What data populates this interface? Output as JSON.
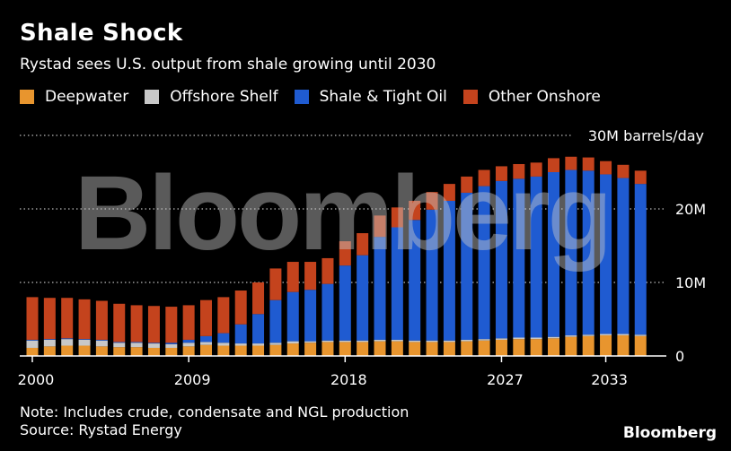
{
  "chart_data": {
    "type": "bar",
    "stacked": true,
    "title": "Shale Shock",
    "subtitle": "Rystad sees U.S. output from shale growing until 2030",
    "unit_label": "30M barrels/day",
    "y_tick_labels": [
      "0",
      "10M",
      "20M"
    ],
    "x_tick_labels": [
      "2000",
      "2009",
      "2018",
      "2027",
      "2033"
    ],
    "ylim": [
      0,
      30
    ],
    "grid": true,
    "legend_position": "top",
    "categories": [
      2000,
      2001,
      2002,
      2003,
      2004,
      2005,
      2006,
      2007,
      2008,
      2009,
      2010,
      2011,
      2012,
      2013,
      2014,
      2015,
      2016,
      2017,
      2018,
      2019,
      2020,
      2021,
      2022,
      2023,
      2024,
      2025,
      2026,
      2027,
      2028,
      2029,
      2030,
      2031,
      2032,
      2033,
      2034,
      2035
    ],
    "series": [
      {
        "name": "Deepwater",
        "color": "#e8952e",
        "values": [
          1.1,
          1.3,
          1.4,
          1.4,
          1.3,
          1.2,
          1.2,
          1.1,
          1.1,
          1.3,
          1.5,
          1.4,
          1.4,
          1.4,
          1.5,
          1.7,
          1.8,
          1.9,
          1.9,
          1.9,
          2.0,
          2.0,
          1.9,
          1.9,
          1.9,
          2.0,
          2.1,
          2.2,
          2.3,
          2.3,
          2.4,
          2.6,
          2.7,
          2.8,
          2.8,
          2.7
        ]
      },
      {
        "name": "Offshore Shelf",
        "color": "#c8c8c8",
        "values": [
          1.0,
          0.9,
          0.9,
          0.8,
          0.8,
          0.6,
          0.6,
          0.6,
          0.5,
          0.5,
          0.4,
          0.4,
          0.3,
          0.3,
          0.3,
          0.3,
          0.2,
          0.2,
          0.2,
          0.2,
          0.2,
          0.2,
          0.2,
          0.2,
          0.2,
          0.2,
          0.2,
          0.2,
          0.2,
          0.2,
          0.2,
          0.2,
          0.2,
          0.2,
          0.2,
          0.2
        ]
      },
      {
        "name": "Shale & Tight Oil",
        "color": "#1f5bd1",
        "values": [
          0.1,
          0.1,
          0.1,
          0.1,
          0.1,
          0.1,
          0.1,
          0.1,
          0.2,
          0.4,
          0.8,
          1.3,
          2.6,
          4.0,
          5.8,
          6.7,
          7.0,
          7.7,
          10.2,
          11.6,
          14.0,
          15.3,
          16.4,
          17.8,
          19.0,
          20.0,
          20.8,
          21.4,
          21.6,
          21.9,
          22.4,
          22.5,
          22.3,
          21.7,
          21.2,
          20.5
        ]
      },
      {
        "name": "Other Onshore",
        "color": "#c4431d",
        "values": [
          5.8,
          5.6,
          5.5,
          5.4,
          5.3,
          5.2,
          5.0,
          5.0,
          4.9,
          4.7,
          4.9,
          4.9,
          4.6,
          4.3,
          4.3,
          4.1,
          3.8,
          3.5,
          3.3,
          3.0,
          2.9,
          2.7,
          2.6,
          2.4,
          2.3,
          2.2,
          2.2,
          2.0,
          2.0,
          1.9,
          1.9,
          1.8,
          1.8,
          1.8,
          1.8,
          1.8
        ]
      }
    ]
  },
  "note": "Note: Includes crude, condensate and NGL production",
  "source": "Source: Rystad Energy",
  "brand": "Bloomberg",
  "watermark": "Bloomberg"
}
